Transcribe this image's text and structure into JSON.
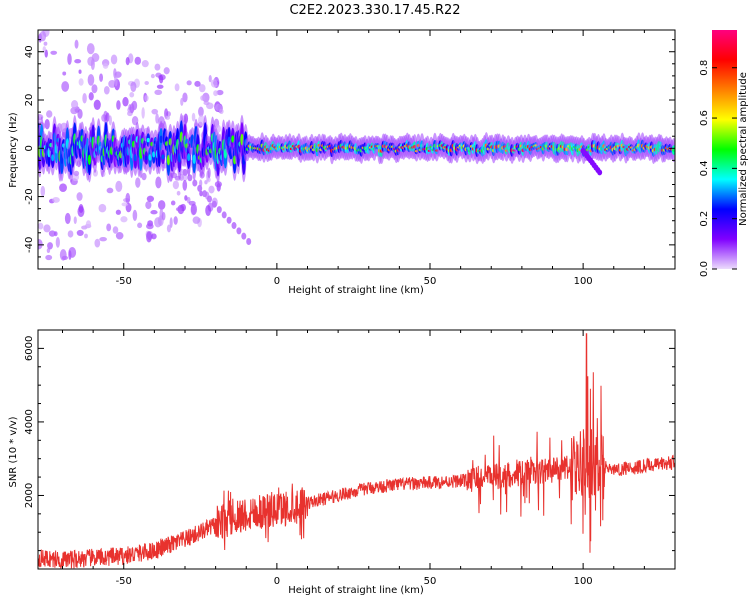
{
  "title": "C2E2.2023.330.17.45.R22",
  "chart_data": [
    {
      "type": "heatmap",
      "panel": "spectrogram",
      "xlabel": "Height of straight line (km)",
      "ylabel": "Frequency (Hz)",
      "xlim": [
        -78,
        130
      ],
      "ylim": [
        -50,
        49
      ],
      "xticks": [
        -50,
        0,
        50,
        100
      ],
      "yticks": [
        -40,
        -20,
        0,
        20,
        40
      ],
      "ridge_center_hz": 0,
      "ridge_band_hz": [
        -5,
        5
      ],
      "colorbar": {
        "label": "Normalized spectral amplitude",
        "range": [
          0.0,
          0.95
        ],
        "ticks": [
          0.0,
          0.2,
          0.4,
          0.6,
          0.8
        ],
        "colormap": [
          "#ecdcfc",
          "#8000ff",
          "#0000ff",
          "#00ffff",
          "#00ff00",
          "#ffff00",
          "#ff7f00",
          "#ff0000",
          "#ff007f"
        ]
      },
      "color": "#8000ff"
    },
    {
      "type": "line",
      "panel": "snr",
      "xlabel": "Height of straight line (km)",
      "ylabel": "SNR (10 * v/v)",
      "xlim": [
        -78,
        130
      ],
      "ylim": [
        0,
        6500
      ],
      "xticks": [
        -50,
        0,
        50,
        100
      ],
      "yticks": [
        2000,
        4000,
        6000
      ],
      "color": "#e8322e",
      "series": [
        {
          "x": [
            -78,
            -70,
            -60,
            -50,
            -40,
            -30,
            -25,
            -20,
            -15,
            -10,
            -5,
            0,
            10,
            20,
            30,
            40,
            50,
            60,
            65,
            70,
            80,
            90,
            95,
            100,
            103,
            105,
            110,
            120,
            130
          ],
          "values": [
            300,
            250,
            300,
            350,
            500,
            800,
            1000,
            1200,
            1400,
            1500,
            1600,
            1600,
            1800,
            2000,
            2200,
            2300,
            2350,
            2400,
            2450,
            2500,
            2600,
            2700,
            2750,
            2750,
            2800,
            2800,
            2700,
            2800,
            2900
          ]
        }
      ]
    }
  ]
}
